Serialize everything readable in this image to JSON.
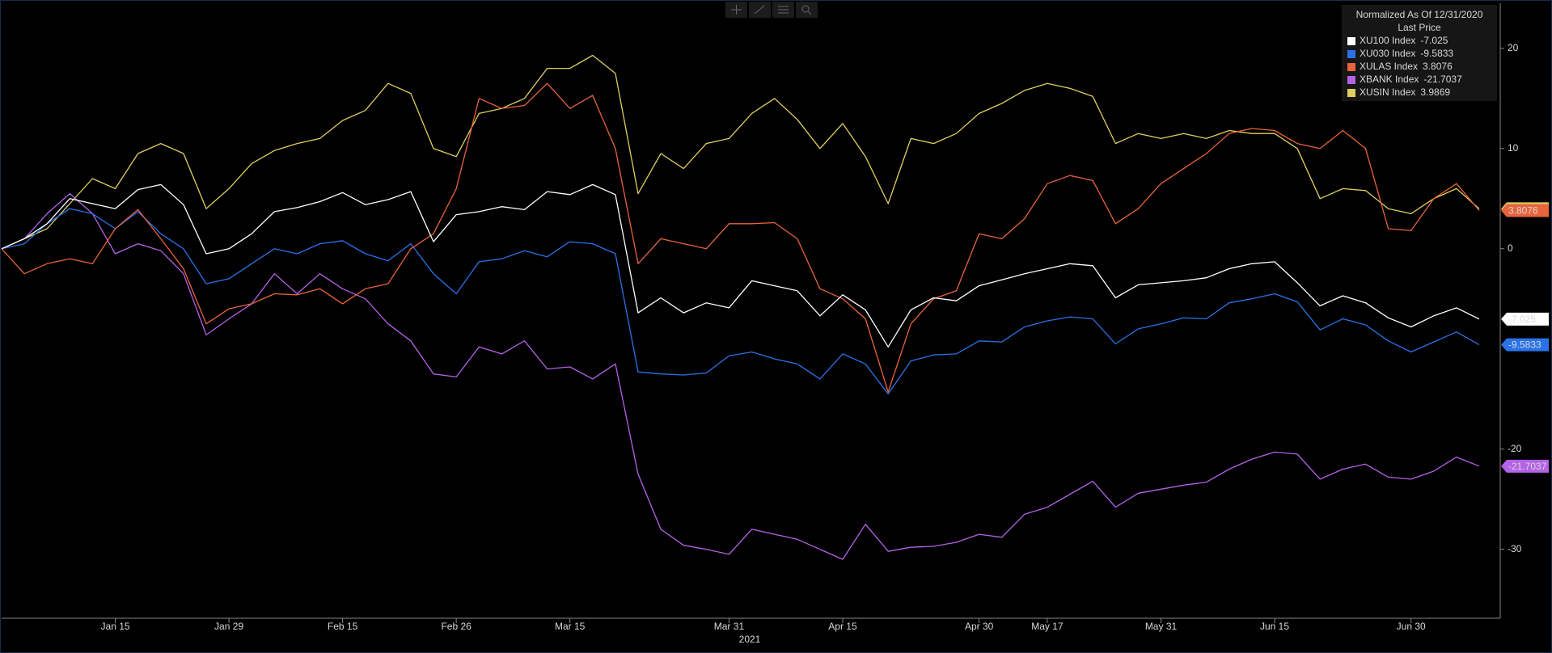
{
  "chart_data": {
    "type": "line",
    "x_label": "2021",
    "legend_title": "Normalized As Of 12/31/2020",
    "legend_subtitle": "Last Price",
    "legend_position": "upper right",
    "categories": [
      null,
      null,
      null,
      null,
      null,
      "Jan 15",
      null,
      null,
      null,
      null,
      "Jan 29",
      null,
      null,
      null,
      null,
      "Feb 15",
      null,
      null,
      null,
      null,
      "Feb 26",
      null,
      null,
      null,
      null,
      "Mar 15",
      null,
      null,
      null,
      null,
      null,
      null,
      "Mar 31",
      null,
      null,
      null,
      null,
      "Apr 15",
      null,
      null,
      null,
      null,
      null,
      "Apr 30",
      null,
      null,
      "May 17",
      null,
      null,
      null,
      null,
      "May 31",
      null,
      null,
      null,
      null,
      "Jun 15",
      null,
      null,
      null,
      null,
      null,
      "Jun 30",
      null,
      null,
      null
    ],
    "ylim": [
      -36.8,
      24.5
    ],
    "yticks": [
      20,
      10,
      0,
      -20,
      -30
    ],
    "series": [
      {
        "name": "XUSIN Index",
        "color": "#e0cf5e",
        "values": [
          0,
          1,
          2,
          4.5,
          7,
          6,
          9.5,
          10.5,
          9.5,
          4,
          6,
          8.5,
          9.8,
          10.5,
          11,
          12.8,
          13.8,
          16.5,
          15.5,
          10,
          9.2,
          13.5,
          14,
          15,
          18,
          18,
          19.3,
          17.5,
          5.5,
          9.5,
          8,
          10.5,
          11,
          13.5,
          15,
          12.9,
          10,
          12.5,
          9.2,
          4.5,
          11,
          10.5,
          11.5,
          13.5,
          14.5,
          15.8,
          16.5,
          16,
          15.2,
          10.5,
          11.5,
          11,
          11.5,
          11,
          11.8,
          11.5,
          11.5,
          10,
          5,
          6,
          5.8,
          4,
          3.5,
          5,
          6,
          3.9869
        ]
      },
      {
        "name": "XBANK Index",
        "color": "#b462e6",
        "values": [
          0,
          1,
          3.5,
          5.5,
          3.5,
          -0.5,
          0.5,
          -0.2,
          -2.5,
          -8.6,
          -7,
          -5.5,
          -2.5,
          -4.5,
          -2.5,
          -4,
          -5,
          -7.5,
          -9.2,
          -12.5,
          -12.8,
          -9.8,
          -10.5,
          -9.2,
          -12,
          -11.8,
          -13,
          -11.5,
          -22.5,
          -28,
          -29.6,
          -30,
          -30.5,
          -28,
          -28.5,
          -29,
          -30,
          -31,
          -27.5,
          -30.2,
          -29.8,
          -29.7,
          -29.3,
          -28.5,
          -28.8,
          -26.5,
          -25.8,
          -24.5,
          -23.2,
          -25.8,
          -24.4,
          -24,
          -23.6,
          -23.3,
          -22,
          -21,
          -20.3,
          -20.5,
          -23,
          -22,
          -21.5,
          -22.8,
          -23,
          -22.2,
          -20.8,
          -21.7037
        ]
      },
      {
        "name": "XU030 Index",
        "color": "#2a72e8",
        "values": [
          0,
          0.5,
          2.5,
          4,
          3.5,
          2,
          3.7,
          1.5,
          0,
          -3.5,
          -3,
          -1.5,
          0,
          -0.5,
          0.5,
          0.8,
          -0.5,
          -1.2,
          0.5,
          -2.5,
          -4.5,
          -1.3,
          -1,
          -0.2,
          -0.8,
          0.7,
          0.5,
          -0.5,
          -12.3,
          -12.5,
          -12.6,
          -12.4,
          -10.7,
          -10.3,
          -11,
          -11.5,
          -13,
          -10.5,
          -11.5,
          -14.5,
          -11.2,
          -10.6,
          -10.5,
          -9.2,
          -9.3,
          -7.8,
          -7.2,
          -6.8,
          -7,
          -9.5,
          -8,
          -7.5,
          -6.9,
          -7,
          -5.4,
          -5,
          -4.5,
          -5.3,
          -8.1,
          -7,
          -7.6,
          -9.2,
          -10.3,
          -9.3,
          -8.3,
          -9.5833
        ]
      },
      {
        "name": "XULAS Index",
        "color": "#e8643c",
        "values": [
          0,
          -2.5,
          -1.5,
          -1,
          -1.5,
          2,
          3.9,
          1,
          -2,
          -7.5,
          -6,
          -5.5,
          -4.5,
          -4.6,
          -4,
          -5.5,
          -4,
          -3.5,
          0,
          1.5,
          6,
          15,
          14,
          14.3,
          16.5,
          14,
          15.3,
          10,
          -1.5,
          1,
          0.5,
          0,
          2.5,
          2.5,
          2.6,
          1,
          -4,
          -5,
          -7,
          -14.3,
          -7.5,
          -5,
          -4.2,
          1.5,
          1,
          3,
          6.5,
          7.3,
          6.8,
          2.5,
          4,
          6.5,
          8,
          9.5,
          11.5,
          12,
          11.8,
          10.5,
          10,
          11.8,
          10,
          2,
          1.8,
          5,
          6.5,
          3.8076
        ]
      },
      {
        "name": "XU100 Index",
        "color": "#ffffff",
        "values": [
          0,
          1,
          2.5,
          5,
          4.5,
          4,
          5.9,
          6.4,
          4.4,
          -0.5,
          0,
          1.5,
          3.7,
          4.1,
          4.7,
          5.6,
          4.4,
          4.9,
          5.7,
          0.7,
          3.4,
          3.7,
          4.2,
          3.9,
          5.7,
          5.4,
          6.4,
          5.4,
          -6.4,
          -4.9,
          -6.4,
          -5.4,
          -5.9,
          -3.2,
          -3.7,
          -4.2,
          -6.7,
          -4.6,
          -6.1,
          -9.8,
          -6.1,
          -4.9,
          -5.2,
          -3.7,
          -3.1,
          -2.5,
          -2,
          -1.5,
          -1.7,
          -4.9,
          -3.6,
          -3.4,
          -3.2,
          -2.9,
          -2,
          -1.5,
          -1.3,
          -3.4,
          -5.7,
          -4.7,
          -5.4,
          -6.9,
          -7.8,
          -6.7,
          -5.9,
          -7.025
        ]
      }
    ],
    "legend_order": [
      4,
      2,
      3,
      1,
      0
    ]
  }
}
